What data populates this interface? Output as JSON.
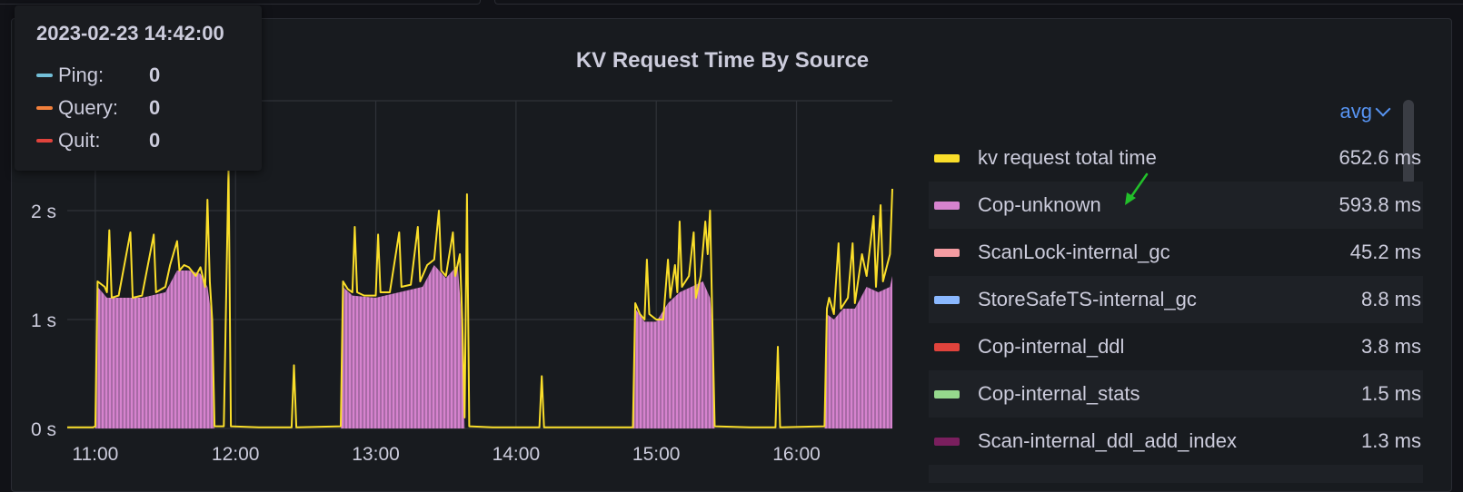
{
  "panel": {
    "title": "KV Request Time By Source"
  },
  "tooltip": {
    "time": "2023-02-23 14:42:00",
    "items": [
      {
        "label": "Ping:",
        "value": "0",
        "color": "#73bfd8"
      },
      {
        "label": "Query:",
        "value": "0",
        "color": "#f2803c"
      },
      {
        "label": "Quit:",
        "value": "0",
        "color": "#e0433c"
      }
    ]
  },
  "legend": {
    "calc": "avg",
    "items": [
      {
        "name": "kv request total time",
        "value": "652.6 ms",
        "color": "#fade2a"
      },
      {
        "name": "Cop-unknown",
        "value": "593.8 ms",
        "color": "#d683ce"
      },
      {
        "name": "ScanLock-internal_gc",
        "value": "45.2 ms",
        "color": "#f49ca2"
      },
      {
        "name": "StoreSafeTS-internal_gc",
        "value": "8.8 ms",
        "color": "#8ab8ff"
      },
      {
        "name": "Cop-internal_ddl",
        "value": "3.8 ms",
        "color": "#e0433c"
      },
      {
        "name": "Cop-internal_stats",
        "value": "1.5 ms",
        "color": "#96d98d"
      },
      {
        "name": "Scan-internal_ddl_add_index",
        "value": "1.3 ms",
        "color": "#7a1f5e"
      }
    ]
  },
  "chart_data": {
    "type": "area",
    "title": "KV Request Time By Source",
    "x_ticks": [
      "11:00",
      "12:00",
      "13:00",
      "14:00",
      "15:00",
      "16:00"
    ],
    "y_ticks": [
      "0 s",
      "1 s",
      "2 s"
    ],
    "y_unit": "s",
    "grid": true,
    "legend_placement": "right",
    "series": [
      {
        "name": "kv request total time",
        "color": "#fade2a",
        "points": [
          [
            "10:48",
            0.01
          ],
          [
            "10:59",
            0.01
          ],
          [
            "11:00",
            0.02
          ],
          [
            "11:01",
            1.35
          ],
          [
            "11:04",
            1.3
          ],
          [
            "11:05",
            1.25
          ],
          [
            "11:06",
            1.82
          ],
          [
            "11:07",
            1.2
          ],
          [
            "11:10",
            1.22
          ],
          [
            "11:15",
            1.8
          ],
          [
            "11:16",
            1.2
          ],
          [
            "11:20",
            1.22
          ],
          [
            "11:25",
            1.78
          ],
          [
            "11:26",
            1.25
          ],
          [
            "11:30",
            1.3
          ],
          [
            "11:32",
            1.5
          ],
          [
            "11:35",
            1.72
          ],
          [
            "11:36",
            1.45
          ],
          [
            "11:38",
            1.5
          ],
          [
            "11:40",
            1.48
          ],
          [
            "11:43",
            1.4
          ],
          [
            "11:45",
            1.48
          ],
          [
            "11:47",
            1.3
          ],
          [
            "11:48",
            2.1
          ],
          [
            "11:49",
            1.35
          ],
          [
            "11:50",
            1.0
          ],
          [
            "11:51",
            0.02
          ],
          [
            "11:55",
            0.02
          ],
          [
            "11:57",
            2.4
          ],
          [
            "11:58",
            0.02
          ],
          [
            "12:10",
            0.01
          ],
          [
            "12:24",
            0.01
          ],
          [
            "12:25",
            0.58
          ],
          [
            "12:26",
            0.01
          ],
          [
            "12:45",
            0.02
          ],
          [
            "12:46",
            1.35
          ],
          [
            "12:48",
            1.28
          ],
          [
            "12:50",
            1.25
          ],
          [
            "12:51",
            1.85
          ],
          [
            "12:52",
            1.25
          ],
          [
            "12:55",
            1.22
          ],
          [
            "13:00",
            1.22
          ],
          [
            "13:01",
            1.78
          ],
          [
            "13:02",
            1.25
          ],
          [
            "13:06",
            1.25
          ],
          [
            "13:10",
            1.8
          ],
          [
            "13:11",
            1.3
          ],
          [
            "13:15",
            1.32
          ],
          [
            "13:18",
            1.85
          ],
          [
            "13:19",
            1.35
          ],
          [
            "13:22",
            1.5
          ],
          [
            "13:25",
            1.55
          ],
          [
            "13:27",
            2.0
          ],
          [
            "13:28",
            1.45
          ],
          [
            "13:30",
            1.4
          ],
          [
            "13:33",
            1.8
          ],
          [
            "13:34",
            1.4
          ],
          [
            "13:36",
            1.6
          ],
          [
            "13:37",
            1.0
          ],
          [
            "13:38",
            0.1
          ],
          [
            "13:39",
            2.15
          ],
          [
            "13:40",
            0.02
          ],
          [
            "13:50",
            0.01
          ],
          [
            "14:10",
            0.01
          ],
          [
            "14:11",
            0.48
          ],
          [
            "14:12",
            0.01
          ],
          [
            "14:50",
            0.01
          ],
          [
            "14:51",
            1.15
          ],
          [
            "14:53",
            1.05
          ],
          [
            "14:55",
            1.0
          ],
          [
            "14:56",
            1.55
          ],
          [
            "14:57",
            1.05
          ],
          [
            "15:00",
            1.0
          ],
          [
            "15:03",
            1.0
          ],
          [
            "15:05",
            1.55
          ],
          [
            "15:06",
            1.2
          ],
          [
            "15:08",
            1.5
          ],
          [
            "15:09",
            1.25
          ],
          [
            "15:10",
            1.9
          ],
          [
            "15:11",
            1.3
          ],
          [
            "15:14",
            1.4
          ],
          [
            "15:16",
            1.8
          ],
          [
            "15:17",
            1.2
          ],
          [
            "15:19",
            1.4
          ],
          [
            "15:21",
            1.9
          ],
          [
            "15:22",
            1.6
          ],
          [
            "15:23",
            2.0
          ],
          [
            "15:24",
            1.0
          ],
          [
            "15:25",
            0.02
          ],
          [
            "15:40",
            0.01
          ],
          [
            "15:51",
            0.01
          ],
          [
            "15:52",
            0.75
          ],
          [
            "15:53",
            0.01
          ],
          [
            "16:12",
            0.02
          ],
          [
            "16:13",
            1.1
          ],
          [
            "16:14",
            1.2
          ],
          [
            "16:16",
            1.05
          ],
          [
            "16:18",
            1.7
          ],
          [
            "16:19",
            1.1
          ],
          [
            "16:22",
            1.2
          ],
          [
            "16:24",
            1.7
          ],
          [
            "16:25",
            1.15
          ],
          [
            "16:28",
            1.6
          ],
          [
            "16:30",
            1.4
          ],
          [
            "16:33",
            1.95
          ],
          [
            "16:34",
            1.3
          ],
          [
            "16:36",
            2.05
          ],
          [
            "16:37",
            1.35
          ],
          [
            "16:40",
            1.6
          ],
          [
            "16:41",
            2.2
          ]
        ]
      },
      {
        "name": "Cop-unknown",
        "color": "#d683ce",
        "points": [
          [
            "10:48",
            0
          ],
          [
            "11:00",
            0
          ],
          [
            "11:01",
            1.3
          ],
          [
            "11:05",
            1.2
          ],
          [
            "11:10",
            1.2
          ],
          [
            "11:20",
            1.2
          ],
          [
            "11:30",
            1.25
          ],
          [
            "11:35",
            1.45
          ],
          [
            "11:40",
            1.45
          ],
          [
            "11:45",
            1.42
          ],
          [
            "11:48",
            1.3
          ],
          [
            "11:50",
            1.0
          ],
          [
            "11:51",
            0
          ],
          [
            "12:45",
            0
          ],
          [
            "12:46",
            1.3
          ],
          [
            "12:50",
            1.22
          ],
          [
            "13:00",
            1.2
          ],
          [
            "13:10",
            1.25
          ],
          [
            "13:20",
            1.3
          ],
          [
            "13:25",
            1.5
          ],
          [
            "13:30",
            1.38
          ],
          [
            "13:35",
            1.5
          ],
          [
            "13:37",
            0.95
          ],
          [
            "13:38",
            0
          ],
          [
            "14:50",
            0
          ],
          [
            "14:51",
            1.1
          ],
          [
            "14:55",
            0.98
          ],
          [
            "15:00",
            0.98
          ],
          [
            "15:05",
            1.15
          ],
          [
            "15:10",
            1.25
          ],
          [
            "15:15",
            1.3
          ],
          [
            "15:20",
            1.35
          ],
          [
            "15:23",
            1.2
          ],
          [
            "15:24",
            0.95
          ],
          [
            "15:25",
            0
          ],
          [
            "16:12",
            0
          ],
          [
            "16:13",
            1.05
          ],
          [
            "16:16",
            1.0
          ],
          [
            "16:20",
            1.1
          ],
          [
            "16:25",
            1.1
          ],
          [
            "16:30",
            1.3
          ],
          [
            "16:35",
            1.25
          ],
          [
            "16:40",
            1.3
          ],
          [
            "16:41",
            1.4
          ]
        ]
      }
    ]
  }
}
